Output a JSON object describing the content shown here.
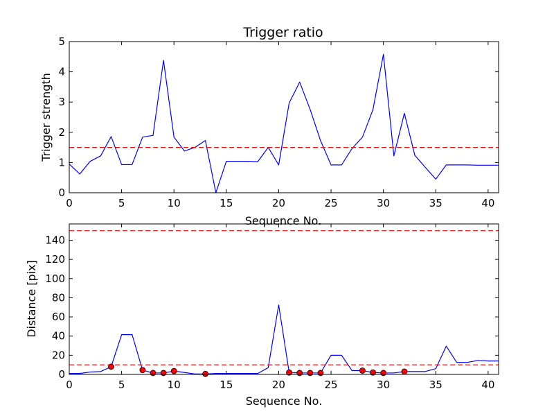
{
  "chart_data": [
    {
      "type": "line",
      "title": "Trigger ratio",
      "xlabel": "Sequence No.",
      "ylabel": "Trigger strength",
      "xlim": [
        0,
        41
      ],
      "ylim": [
        0,
        5
      ],
      "xticks": [
        0,
        5,
        10,
        15,
        20,
        25,
        30,
        35,
        40
      ],
      "yticks": [
        0,
        1,
        2,
        3,
        4,
        5
      ],
      "grid": false,
      "series": [
        {
          "color": "#0000ff",
          "x": [
            0,
            1,
            2,
            3,
            4,
            5,
            6,
            7,
            8,
            9,
            10,
            11,
            12,
            13,
            14,
            15,
            16,
            17,
            18,
            19,
            20,
            21,
            22,
            23,
            24,
            25,
            26,
            27,
            28,
            29,
            30,
            31,
            32,
            33,
            34,
            35,
            36,
            37,
            38,
            39,
            40,
            41
          ],
          "values": [
            0.95,
            0.62,
            1.04,
            1.22,
            1.86,
            0.93,
            0.93,
            1.84,
            1.9,
            4.38,
            1.84,
            1.38,
            1.5,
            1.73,
            0.0,
            1.04,
            1.04,
            1.04,
            1.03,
            1.5,
            0.92,
            2.97,
            3.66,
            2.76,
            1.72,
            0.92,
            0.92,
            1.46,
            1.84,
            2.75,
            4.58,
            1.22,
            2.63,
            1.24,
            0.84,
            0.45,
            0.92,
            0.92,
            0.92,
            0.91,
            0.91,
            0.91
          ]
        }
      ],
      "hlines": [
        {
          "y": 1.5,
          "color": "#ff0000",
          "style": "dashed"
        }
      ]
    },
    {
      "type": "line",
      "title": "",
      "xlabel": "Sequence No.",
      "ylabel": "Distance [pix]",
      "xlim": [
        0,
        41
      ],
      "ylim": [
        0,
        157
      ],
      "xticks": [
        0,
        5,
        10,
        15,
        20,
        25,
        30,
        35,
        40
      ],
      "yticks": [
        0,
        20,
        40,
        60,
        80,
        100,
        120,
        140
      ],
      "grid": false,
      "series": [
        {
          "color": "#0000ff",
          "x": [
            0,
            1,
            2,
            3,
            4,
            5,
            6,
            7,
            8,
            9,
            10,
            11,
            12,
            13,
            14,
            15,
            16,
            17,
            18,
            19,
            20,
            21,
            22,
            23,
            24,
            25,
            26,
            27,
            28,
            29,
            30,
            31,
            32,
            33,
            34,
            35,
            36,
            37,
            38,
            39,
            40,
            41
          ],
          "values": [
            1.0,
            1.0,
            2.5,
            3.0,
            8.0,
            41.5,
            41.5,
            4.5,
            1.5,
            1.5,
            3.5,
            2.0,
            0.5,
            0.5,
            1.0,
            1.0,
            1.0,
            1.0,
            1.0,
            7.0,
            72.5,
            2.0,
            1.5,
            1.5,
            1.5,
            20.0,
            20.0,
            4.0,
            4.0,
            2.0,
            1.5,
            1.5,
            3.0,
            3.0,
            3.0,
            6.0,
            29.5,
            12.5,
            12.5,
            14.5,
            14.0,
            14.0
          ]
        }
      ],
      "markers": {
        "color": "#ff0000",
        "x": [
          4,
          7,
          8,
          9,
          10,
          13,
          21,
          22,
          23,
          24,
          28,
          29,
          30,
          32
        ],
        "values": [
          8.0,
          4.5,
          1.5,
          1.5,
          3.5,
          0.5,
          2.0,
          1.5,
          1.5,
          1.5,
          4.0,
          2.0,
          1.5,
          3.0
        ]
      },
      "hlines": [
        {
          "y": 10,
          "color": "#ff0000",
          "style": "dashed"
        },
        {
          "y": 150,
          "color": "#ff0000",
          "style": "dashed"
        }
      ]
    }
  ]
}
